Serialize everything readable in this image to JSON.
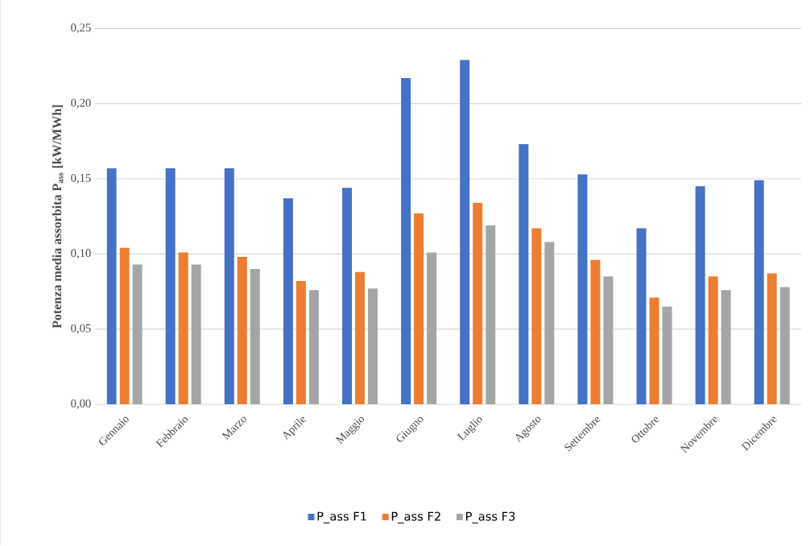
{
  "chart_data": {
    "type": "bar",
    "ylabel": "Potenza media assorbita P$_{ass}$  [kW/MWh]",
    "categories": [
      "Gennaio",
      "Febbraio",
      "Marzo",
      "Aprile",
      "Maggio",
      "Giugno",
      "Luglio",
      "Agosto",
      "Settembre",
      "Ottobre",
      "Novembre",
      "Dicembre"
    ],
    "series": [
      {
        "name": "P_ass F1",
        "color": "#4472c4",
        "values": [
          0.157,
          0.157,
          0.157,
          0.137,
          0.144,
          0.217,
          0.229,
          0.173,
          0.153,
          0.117,
          0.145,
          0.149
        ]
      },
      {
        "name": "P_ass F2",
        "color": "#ed7d31",
        "values": [
          0.104,
          0.101,
          0.098,
          0.082,
          0.088,
          0.127,
          0.134,
          0.117,
          0.096,
          0.071,
          0.085,
          0.087
        ]
      },
      {
        "name": "P_ass F3",
        "color": "#a5a5a5",
        "values": [
          0.093,
          0.093,
          0.09,
          0.076,
          0.077,
          0.101,
          0.119,
          0.108,
          0.085,
          0.065,
          0.076,
          0.078
        ]
      }
    ],
    "ylim": [
      0,
      0.25
    ],
    "yticks": [
      {
        "value": 0,
        "label": "0,00"
      },
      {
        "value": 0.05,
        "label": "0,05"
      },
      {
        "value": 0.1,
        "label": "0,10"
      },
      {
        "value": 0.15,
        "label": "0,15"
      },
      {
        "value": 0.2,
        "label": "0,20"
      },
      {
        "value": 0.25,
        "label": "0,25"
      }
    ],
    "grid": "y",
    "legend": "bottom"
  }
}
